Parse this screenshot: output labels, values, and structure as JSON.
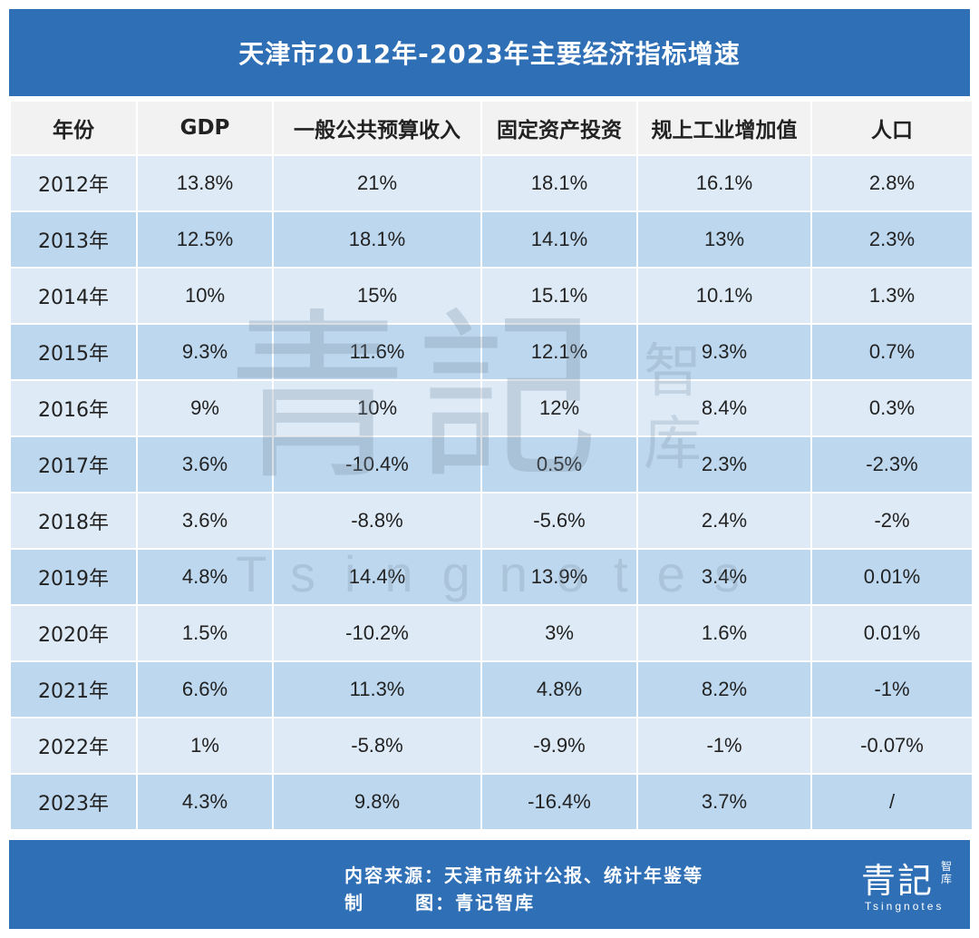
{
  "title": "天津市2012年-2023年主要经济指标增速",
  "headers": [
    "年份",
    "GDP",
    "一般公共预算收入",
    "固定资产投资",
    "规上工业增加值",
    "人口"
  ],
  "rows": [
    [
      "2012年",
      "13.8%",
      "21%",
      "18.1%",
      "16.1%",
      "2.8%"
    ],
    [
      "2013年",
      "12.5%",
      "18.1%",
      "14.1%",
      "13%",
      "2.3%"
    ],
    [
      "2014年",
      "10%",
      "15%",
      "15.1%",
      "10.1%",
      "1.3%"
    ],
    [
      "2015年",
      "9.3%",
      "11.6%",
      "12.1%",
      "9.3%",
      "0.7%"
    ],
    [
      "2016年",
      "9%",
      "10%",
      "12%",
      "8.4%",
      "0.3%"
    ],
    [
      "2017年",
      "3.6%",
      "-10.4%",
      "0.5%",
      "2.3%",
      "-2.3%"
    ],
    [
      "2018年",
      "3.6%",
      "-8.8%",
      "-5.6%",
      "2.4%",
      "-2%"
    ],
    [
      "2019年",
      "4.8%",
      "14.4%",
      "13.9%",
      "3.4%",
      "0.01%"
    ],
    [
      "2020年",
      "1.5%",
      "-10.2%",
      "3%",
      "1.6%",
      "0.01%"
    ],
    [
      "2021年",
      "6.6%",
      "11.3%",
      "4.8%",
      "8.2%",
      "-1%"
    ],
    [
      "2022年",
      "1%",
      "-5.8%",
      "-9.9%",
      "-1%",
      "-0.07%"
    ],
    [
      "2023年",
      "4.3%",
      "9.8%",
      "-16.4%",
      "3.7%",
      "/"
    ]
  ],
  "footer": {
    "source": "内容来源：天津市统计公报、统计年鉴等",
    "maker": "制    图：青记智库"
  },
  "logo": {
    "main": "青記",
    "side": "智库",
    "sub": "Tsingnotes"
  },
  "watermark": {
    "main": "青記",
    "side": "智库",
    "sub": "Tsingnotes"
  },
  "colors": {
    "header_bar": "#2f6fb5",
    "row_light": "#deebf7",
    "row_dark": "#bdd7ee",
    "column_header": "#f2f2f2"
  }
}
